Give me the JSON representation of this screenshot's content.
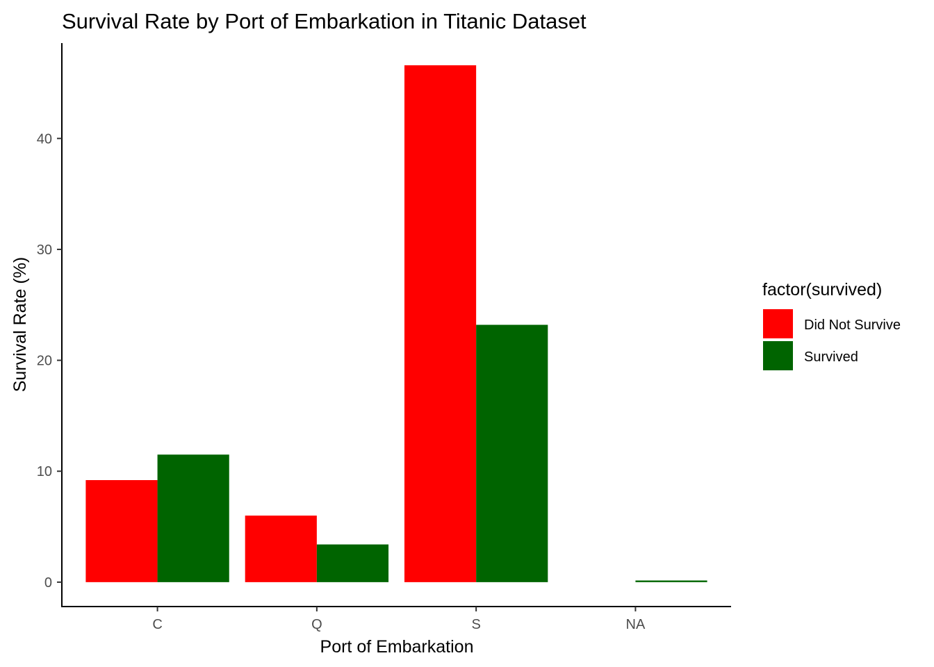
{
  "chart_data": {
    "type": "bar",
    "title": "Survival Rate by Port of Embarkation in Titanic Dataset",
    "xlabel": "Port of Embarkation",
    "ylabel": "Survival Rate (%)",
    "categories": [
      "C",
      "Q",
      "S",
      "NA"
    ],
    "series": [
      {
        "name": "Did Not Survive",
        "color": "#ff0000",
        "values": [
          9.2,
          6.0,
          46.6,
          0.0
        ]
      },
      {
        "name": "Survived",
        "color": "#006400",
        "values": [
          11.5,
          3.4,
          23.2,
          0.15
        ]
      }
    ],
    "ylim": [
      -2.2,
      48.6
    ],
    "yticks": [
      0,
      10,
      20,
      30,
      40
    ],
    "grid": false,
    "legend": {
      "title": "factor(survived)",
      "placement": "right"
    }
  }
}
